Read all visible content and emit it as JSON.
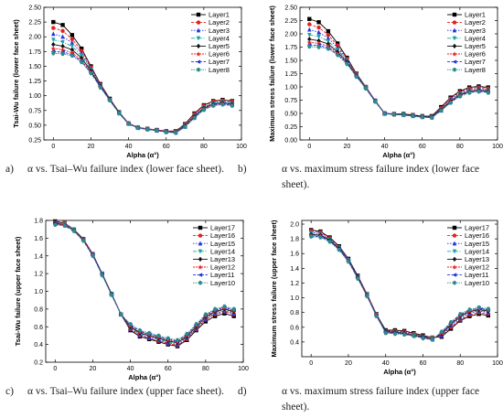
{
  "panel_labels": [
    "a)",
    "b)",
    "c)",
    "d)"
  ],
  "captions": [
    "α vs. Tsai–Wu failure index (lower face sheet).",
    "α vs. maximum stress failure index (lower face sheet).",
    "α vs. Tsai–Wu failure index (upper face sheet).",
    "α vs. maximum stress failure index (upper face sheet)."
  ],
  "colors": [
    "#000000",
    "#e8201a",
    "#2233dd",
    "#1aa3a3",
    "#111111",
    "#e8201a",
    "#2233dd",
    "#2a8c8c"
  ],
  "markers": [
    "square",
    "circle",
    "triangle-up",
    "triangle-down",
    "diamond",
    "star",
    "triangle-left",
    "hexagon"
  ],
  "chart_data": [
    {
      "type": "line",
      "xlabel": "Alpha (α°)",
      "ylabel": "Tsai-Wu failure (lower face sheet)",
      "xlim": [
        -5,
        100
      ],
      "ylim": [
        0.25,
        2.5
      ],
      "xticks": [
        0,
        20,
        40,
        60,
        80,
        100
      ],
      "yticks": [
        0.25,
        0.5,
        0.75,
        1.0,
        1.25,
        1.5,
        1.75,
        2.0,
        2.25,
        2.5
      ],
      "ytick_labels": [
        "0.25",
        "0.50",
        "0.75",
        "1.00",
        "1.25",
        "1.50",
        "1.75",
        "2.00",
        "2.25",
        "2.50"
      ],
      "legend": "top-right",
      "x": [
        0,
        5,
        10,
        15,
        20,
        25,
        30,
        35,
        40,
        45,
        50,
        55,
        60,
        65,
        70,
        75,
        80,
        85,
        90,
        95
      ],
      "series": [
        {
          "name": "Layer1",
          "values": [
            2.25,
            2.2,
            2.03,
            1.8,
            1.5,
            1.2,
            0.95,
            0.72,
            0.53,
            0.46,
            0.44,
            0.42,
            0.4,
            0.4,
            0.52,
            0.7,
            0.84,
            0.91,
            0.93,
            0.91
          ]
        },
        {
          "name": "Layer2",
          "values": [
            2.15,
            2.1,
            1.96,
            1.76,
            1.48,
            1.19,
            0.94,
            0.71,
            0.53,
            0.46,
            0.44,
            0.42,
            0.4,
            0.4,
            0.51,
            0.69,
            0.83,
            0.9,
            0.92,
            0.9
          ]
        },
        {
          "name": "Layer3",
          "values": [
            2.05,
            2.0,
            1.9,
            1.72,
            1.46,
            1.18,
            0.94,
            0.71,
            0.53,
            0.46,
            0.44,
            0.41,
            0.39,
            0.39,
            0.5,
            0.67,
            0.81,
            0.88,
            0.9,
            0.88
          ]
        },
        {
          "name": "Layer4",
          "values": [
            1.95,
            1.91,
            1.84,
            1.68,
            1.44,
            1.17,
            0.93,
            0.71,
            0.53,
            0.46,
            0.43,
            0.41,
            0.39,
            0.38,
            0.5,
            0.66,
            0.8,
            0.87,
            0.89,
            0.87
          ]
        },
        {
          "name": "Layer5",
          "values": [
            1.87,
            1.84,
            1.78,
            1.64,
            1.42,
            1.16,
            0.93,
            0.71,
            0.53,
            0.46,
            0.43,
            0.41,
            0.39,
            0.38,
            0.49,
            0.65,
            0.79,
            0.86,
            0.88,
            0.86
          ]
        },
        {
          "name": "Layer6",
          "values": [
            1.8,
            1.78,
            1.73,
            1.6,
            1.4,
            1.15,
            0.93,
            0.7,
            0.53,
            0.46,
            0.43,
            0.41,
            0.39,
            0.38,
            0.48,
            0.64,
            0.78,
            0.85,
            0.87,
            0.85
          ]
        },
        {
          "name": "Layer7",
          "values": [
            1.75,
            1.74,
            1.7,
            1.58,
            1.39,
            1.15,
            0.92,
            0.7,
            0.52,
            0.45,
            0.43,
            0.41,
            0.39,
            0.37,
            0.47,
            0.63,
            0.77,
            0.84,
            0.86,
            0.84
          ]
        },
        {
          "name": "Layer8",
          "values": [
            1.72,
            1.71,
            1.68,
            1.57,
            1.38,
            1.14,
            0.92,
            0.7,
            0.52,
            0.45,
            0.43,
            0.41,
            0.38,
            0.37,
            0.47,
            0.62,
            0.76,
            0.83,
            0.85,
            0.83
          ]
        }
      ]
    },
    {
      "type": "line",
      "xlabel": "Alpha (α°)",
      "ylabel": "Maximum stress failure (lower face sheet)",
      "xlim": [
        -5,
        100
      ],
      "ylim": [
        0.0,
        2.5
      ],
      "xticks": [
        0,
        20,
        40,
        60,
        80,
        100
      ],
      "yticks": [
        0.0,
        0.25,
        0.5,
        0.75,
        1.0,
        1.25,
        1.5,
        1.75,
        2.0,
        2.25,
        2.5
      ],
      "ytick_labels": [
        "0.00",
        "0.25",
        "0.50",
        "0.75",
        "1.00",
        "1.25",
        "1.50",
        "1.75",
        "2.00",
        "2.25",
        "2.50"
      ],
      "legend": "top-right",
      "x": [
        0,
        5,
        10,
        15,
        20,
        25,
        30,
        35,
        40,
        45,
        50,
        55,
        60,
        65,
        70,
        75,
        80,
        85,
        90,
        95
      ],
      "series": [
        {
          "name": "Layer1",
          "values": [
            2.28,
            2.22,
            2.05,
            1.82,
            1.55,
            1.25,
            1.0,
            0.74,
            0.5,
            0.49,
            0.49,
            0.47,
            0.45,
            0.45,
            0.62,
            0.8,
            0.92,
            0.99,
            1.01,
            0.99
          ]
        },
        {
          "name": "Layer2",
          "values": [
            2.18,
            2.12,
            1.98,
            1.78,
            1.53,
            1.24,
            1.0,
            0.74,
            0.5,
            0.49,
            0.48,
            0.47,
            0.45,
            0.44,
            0.6,
            0.78,
            0.9,
            0.97,
            0.99,
            0.97
          ]
        },
        {
          "name": "Layer3",
          "values": [
            2.08,
            2.03,
            1.92,
            1.74,
            1.51,
            1.23,
            0.99,
            0.74,
            0.5,
            0.49,
            0.48,
            0.46,
            0.44,
            0.44,
            0.59,
            0.76,
            0.88,
            0.95,
            0.97,
            0.95
          ]
        },
        {
          "name": "Layer4",
          "values": [
            1.98,
            1.95,
            1.86,
            1.7,
            1.49,
            1.22,
            0.99,
            0.73,
            0.5,
            0.48,
            0.48,
            0.46,
            0.44,
            0.43,
            0.58,
            0.74,
            0.86,
            0.93,
            0.95,
            0.93
          ]
        },
        {
          "name": "Layer5",
          "values": [
            1.9,
            1.87,
            1.81,
            1.66,
            1.47,
            1.21,
            0.98,
            0.73,
            0.5,
            0.48,
            0.48,
            0.46,
            0.44,
            0.43,
            0.57,
            0.73,
            0.85,
            0.92,
            0.94,
            0.92
          ]
        },
        {
          "name": "Layer6",
          "values": [
            1.84,
            1.82,
            1.77,
            1.63,
            1.45,
            1.2,
            0.98,
            0.73,
            0.5,
            0.48,
            0.47,
            0.45,
            0.43,
            0.42,
            0.56,
            0.72,
            0.84,
            0.91,
            0.93,
            0.91
          ]
        },
        {
          "name": "Layer7",
          "values": [
            1.79,
            1.78,
            1.74,
            1.61,
            1.44,
            1.2,
            0.97,
            0.72,
            0.5,
            0.48,
            0.47,
            0.45,
            0.43,
            0.42,
            0.55,
            0.71,
            0.83,
            0.9,
            0.92,
            0.9
          ]
        },
        {
          "name": "Layer8",
          "values": [
            1.76,
            1.75,
            1.72,
            1.6,
            1.43,
            1.19,
            0.97,
            0.72,
            0.49,
            0.48,
            0.47,
            0.45,
            0.43,
            0.42,
            0.55,
            0.7,
            0.82,
            0.89,
            0.91,
            0.89
          ]
        }
      ]
    },
    {
      "type": "line",
      "xlabel": "Alpha (α°)",
      "ylabel": "Tsai-Wu failure (upper face sheet)",
      "xlim": [
        -5,
        100
      ],
      "ylim": [
        0.2,
        1.8
      ],
      "xticks": [
        0,
        20,
        40,
        60,
        80,
        100
      ],
      "yticks": [
        0.2,
        0.4,
        0.6,
        0.8,
        1.0,
        1.2,
        1.4,
        1.6,
        1.8
      ],
      "ytick_labels": [
        "0.2",
        "0.4",
        "0.6",
        "0.8",
        "1.0",
        "1.2",
        "1.4",
        "1.6",
        "1.8"
      ],
      "legend": "top-right",
      "x": [
        0,
        5,
        10,
        15,
        20,
        25,
        30,
        35,
        40,
        45,
        50,
        55,
        60,
        65,
        70,
        75,
        80,
        85,
        90,
        95
      ],
      "series": [
        {
          "name": "Layer17",
          "values": [
            1.79,
            1.77,
            1.7,
            1.59,
            1.42,
            1.2,
            0.97,
            0.74,
            0.56,
            0.49,
            0.46,
            0.43,
            0.4,
            0.38,
            0.45,
            0.56,
            0.66,
            0.72,
            0.75,
            0.72
          ]
        },
        {
          "name": "Layer16",
          "values": [
            1.78,
            1.77,
            1.7,
            1.59,
            1.42,
            1.2,
            0.97,
            0.74,
            0.57,
            0.5,
            0.47,
            0.44,
            0.41,
            0.39,
            0.46,
            0.57,
            0.68,
            0.74,
            0.77,
            0.74
          ]
        },
        {
          "name": "Layer15",
          "values": [
            1.78,
            1.76,
            1.7,
            1.59,
            1.42,
            1.2,
            0.97,
            0.74,
            0.58,
            0.51,
            0.48,
            0.45,
            0.42,
            0.4,
            0.47,
            0.58,
            0.69,
            0.75,
            0.78,
            0.75
          ]
        },
        {
          "name": "Layer14",
          "values": [
            1.77,
            1.76,
            1.7,
            1.58,
            1.41,
            1.2,
            0.97,
            0.74,
            0.59,
            0.52,
            0.49,
            0.46,
            0.43,
            0.41,
            0.48,
            0.59,
            0.7,
            0.76,
            0.79,
            0.76
          ]
        },
        {
          "name": "Layer13",
          "values": [
            1.77,
            1.75,
            1.69,
            1.58,
            1.41,
            1.19,
            0.97,
            0.74,
            0.6,
            0.53,
            0.5,
            0.47,
            0.44,
            0.42,
            0.49,
            0.6,
            0.71,
            0.77,
            0.8,
            0.77
          ]
        },
        {
          "name": "Layer12",
          "values": [
            1.76,
            1.75,
            1.69,
            1.58,
            1.41,
            1.19,
            0.96,
            0.74,
            0.61,
            0.54,
            0.51,
            0.48,
            0.45,
            0.43,
            0.5,
            0.61,
            0.72,
            0.78,
            0.81,
            0.78
          ]
        },
        {
          "name": "Layer11",
          "values": [
            1.76,
            1.74,
            1.68,
            1.57,
            1.4,
            1.19,
            0.96,
            0.74,
            0.62,
            0.55,
            0.52,
            0.49,
            0.46,
            0.44,
            0.51,
            0.62,
            0.73,
            0.79,
            0.82,
            0.79
          ]
        },
        {
          "name": "Layer10",
          "values": [
            1.75,
            1.74,
            1.68,
            1.57,
            1.4,
            1.18,
            0.96,
            0.74,
            0.63,
            0.56,
            0.53,
            0.5,
            0.47,
            0.45,
            0.52,
            0.63,
            0.74,
            0.8,
            0.83,
            0.8
          ]
        }
      ]
    },
    {
      "type": "line",
      "xlabel": "Alpha (α°)",
      "ylabel": "Maximum stress failure (upper face sheet)",
      "xlim": [
        -5,
        100
      ],
      "ylim": [
        0.2,
        2.05
      ],
      "xticks": [
        0,
        20,
        40,
        60,
        80,
        100
      ],
      "yticks": [
        0.4,
        0.6,
        0.8,
        1.0,
        1.2,
        1.4,
        1.6,
        1.8,
        2.0
      ],
      "ytick_labels": [
        "0.4",
        "0.6",
        "0.8",
        "1.0",
        "1.2",
        "1.4",
        "1.6",
        "1.8",
        "2.0"
      ],
      "legend": "top-right",
      "x": [
        0,
        5,
        10,
        15,
        20,
        25,
        30,
        35,
        40,
        45,
        50,
        55,
        60,
        65,
        70,
        75,
        80,
        85,
        90,
        95
      ],
      "series": [
        {
          "name": "Layer17",
          "values": [
            1.92,
            1.9,
            1.82,
            1.7,
            1.53,
            1.3,
            1.05,
            0.78,
            0.56,
            0.56,
            0.55,
            0.52,
            0.49,
            0.46,
            0.47,
            0.58,
            0.69,
            0.75,
            0.78,
            0.76
          ]
        },
        {
          "name": "Layer16",
          "values": [
            1.91,
            1.89,
            1.81,
            1.69,
            1.52,
            1.29,
            1.05,
            0.78,
            0.55,
            0.55,
            0.54,
            0.51,
            0.48,
            0.46,
            0.48,
            0.6,
            0.7,
            0.77,
            0.8,
            0.78
          ]
        },
        {
          "name": "Layer15",
          "values": [
            1.89,
            1.87,
            1.8,
            1.69,
            1.52,
            1.29,
            1.04,
            0.77,
            0.55,
            0.54,
            0.53,
            0.5,
            0.48,
            0.45,
            0.49,
            0.62,
            0.72,
            0.79,
            0.82,
            0.8
          ]
        },
        {
          "name": "Layer14",
          "values": [
            1.88,
            1.86,
            1.79,
            1.68,
            1.51,
            1.28,
            1.04,
            0.77,
            0.54,
            0.53,
            0.52,
            0.5,
            0.47,
            0.45,
            0.5,
            0.63,
            0.74,
            0.8,
            0.83,
            0.81
          ]
        },
        {
          "name": "Layer13",
          "values": [
            1.86,
            1.85,
            1.78,
            1.67,
            1.5,
            1.28,
            1.03,
            0.76,
            0.54,
            0.53,
            0.52,
            0.49,
            0.47,
            0.44,
            0.51,
            0.64,
            0.75,
            0.81,
            0.84,
            0.82
          ]
        },
        {
          "name": "Layer12",
          "values": [
            1.85,
            1.84,
            1.77,
            1.66,
            1.5,
            1.27,
            1.03,
            0.76,
            0.53,
            0.52,
            0.51,
            0.49,
            0.46,
            0.44,
            0.52,
            0.65,
            0.76,
            0.82,
            0.85,
            0.83
          ]
        },
        {
          "name": "Layer11",
          "values": [
            1.84,
            1.83,
            1.77,
            1.66,
            1.49,
            1.27,
            1.02,
            0.76,
            0.53,
            0.52,
            0.51,
            0.48,
            0.46,
            0.43,
            0.53,
            0.66,
            0.77,
            0.83,
            0.86,
            0.84
          ]
        },
        {
          "name": "Layer10",
          "values": [
            1.83,
            1.82,
            1.76,
            1.65,
            1.49,
            1.26,
            1.02,
            0.75,
            0.52,
            0.51,
            0.5,
            0.48,
            0.45,
            0.43,
            0.54,
            0.67,
            0.78,
            0.84,
            0.87,
            0.85
          ]
        }
      ]
    }
  ]
}
